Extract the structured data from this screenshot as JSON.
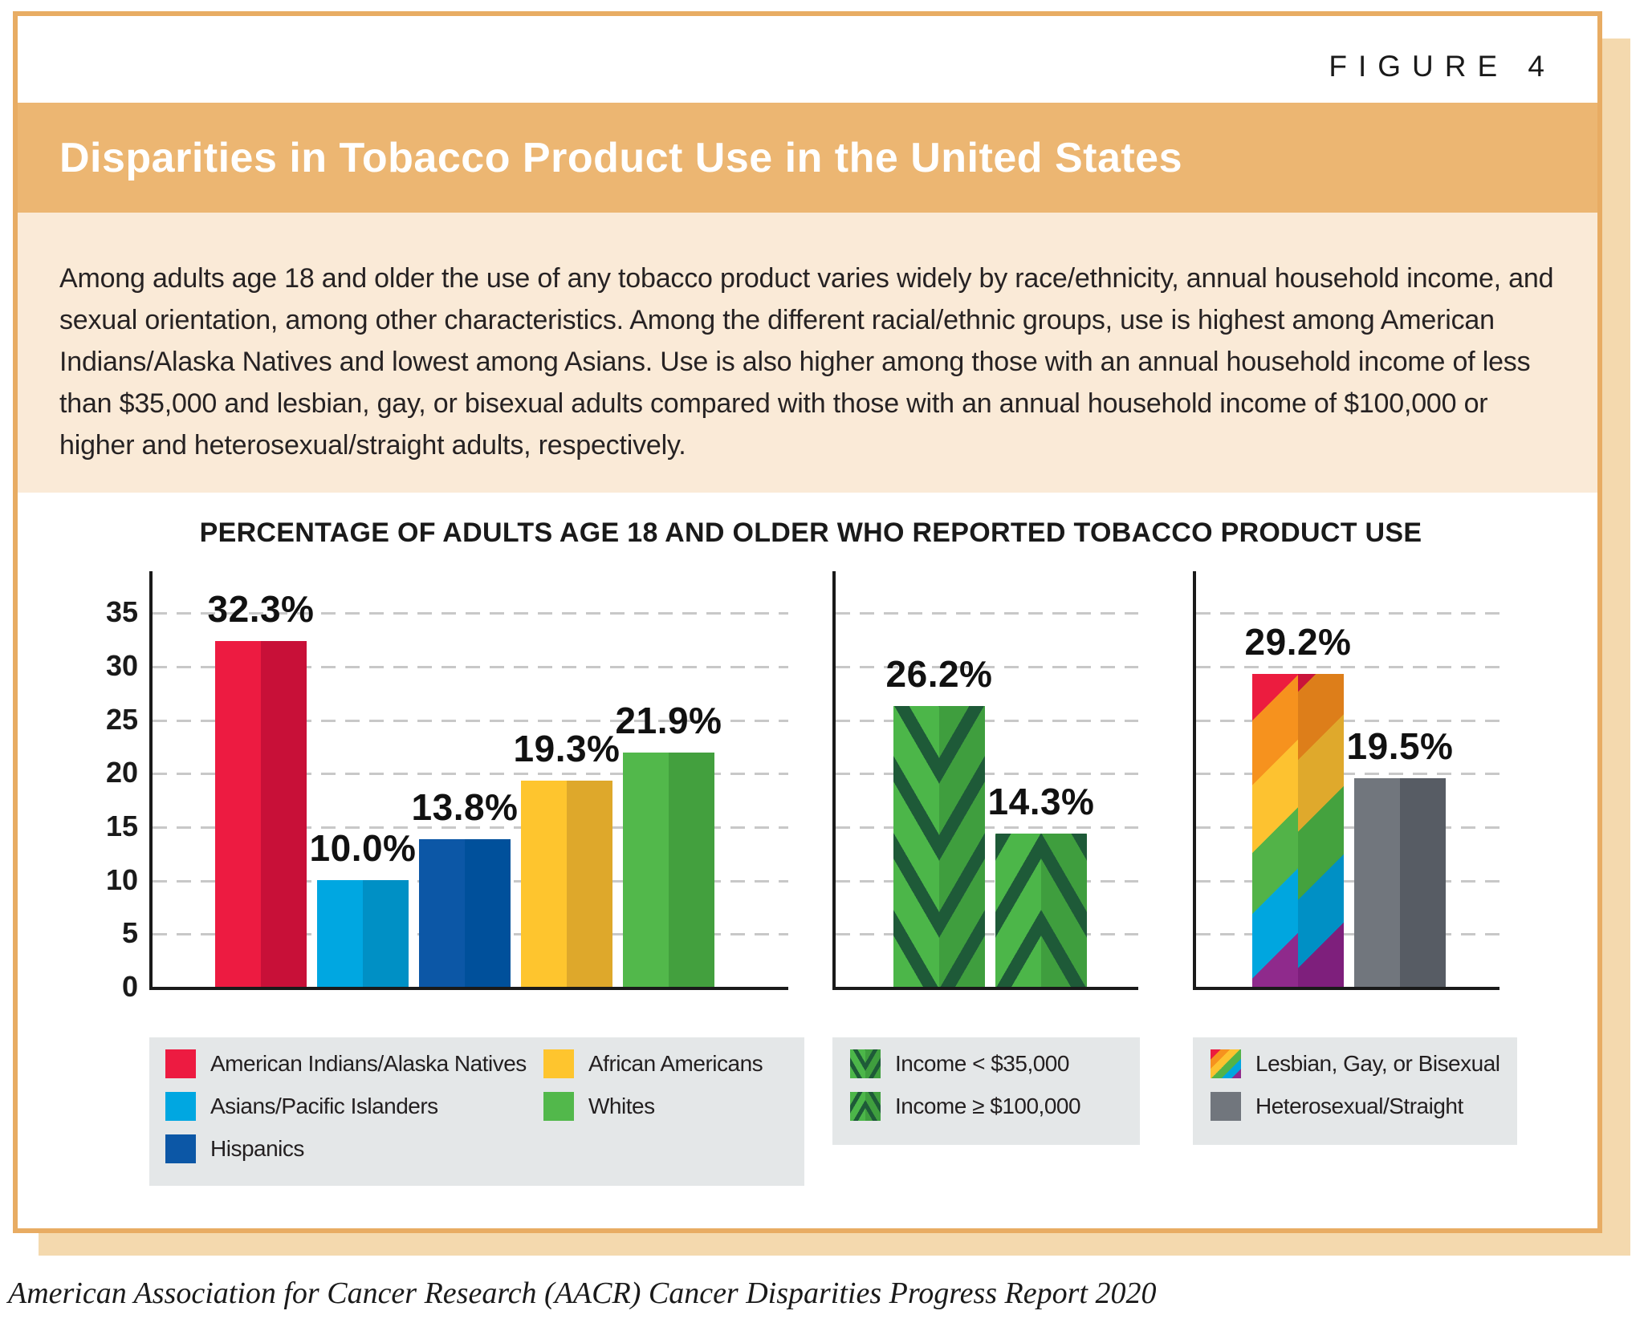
{
  "figure_label": "FIGURE 4",
  "title": "Disparities in Tobacco Product Use in the United States",
  "description": "Among adults age 18 and older the use of any tobacco product varies widely by race/ethnicity, annual household income, and sexual orientation, among other characteristics. Among the different racial/ethnic groups, use is highest among American Indians/Alaska Natives and lowest among Asians. Use is also higher among those with an annual household income of less than $35,000 and lesbian, gay, or bisexual adults compared with those with an annual household income of $100,000 or higher and heterosexual/straight adults, respectively.",
  "footer": "American Association for Cancer Research (AACR) Cancer Disparities Progress Report 2020",
  "colors": {
    "frame_border": "#E8AC63",
    "title_band": "#ECB672",
    "description_band": "#FAEAD7",
    "drop_shadow": "#F4D9AE",
    "legend_background": "#E4E7E8",
    "chevron_stripe": "#1E5A38",
    "text_black": "#231F20"
  },
  "chart_data": {
    "type": "bar",
    "title": "PERCENTAGE OF ADULTS AGE 18 AND OLDER WHO REPORTED TOBACCO PRODUCT USE",
    "ylabel": "",
    "xlabel": "",
    "ylim": [
      0,
      35
    ],
    "yticks": [
      0,
      5,
      10,
      15,
      20,
      25,
      30,
      35
    ],
    "grid": "dashed horizontal gridlines at every 5 units",
    "legend_position": "below each panel",
    "panels": [
      {
        "name": "race-ethnicity",
        "bars": [
          {
            "label": "American Indians/Alaska Natives",
            "value": 32.3,
            "display": "32.3%",
            "color": "#ED1B41",
            "color_dark": "#C81038"
          },
          {
            "label": "Asians/Pacific Islanders",
            "value": 10.0,
            "display": "10.0%",
            "color": "#00A7E1",
            "color_dark": "#0090C5"
          },
          {
            "label": "Hispanics",
            "value": 13.8,
            "display": "13.8%",
            "color": "#0C57A6",
            "color_dark": "#00509B"
          },
          {
            "label": "African Americans",
            "value": 19.3,
            "display": "19.3%",
            "color": "#FEC52E",
            "color_dark": "#DEA82B"
          },
          {
            "label": "Whites",
            "value": 21.9,
            "display": "21.9%",
            "color": "#52B84B",
            "color_dark": "#43A03E"
          }
        ]
      },
      {
        "name": "household-income",
        "bars": [
          {
            "label": "Income < $35,000",
            "value": 26.2,
            "display": "26.2%",
            "pattern": "chevron-down"
          },
          {
            "label": "Income ≥ $100,000",
            "value": 14.3,
            "display": "14.3%",
            "pattern": "chevron-up"
          }
        ]
      },
      {
        "name": "sexual-orientation",
        "bars": [
          {
            "label": "Lesbian, Gay, or Bisexual",
            "value": 29.2,
            "display": "29.2%",
            "pattern": "rainbow"
          },
          {
            "label": "Heterosexual/Straight",
            "value": 19.5,
            "display": "19.5%",
            "color": "#71767D",
            "color_dark": "#575C64"
          }
        ]
      }
    ],
    "legends": [
      {
        "items": [
          {
            "label": "American Indians/Alaska Natives",
            "color": "#ED1B41"
          },
          {
            "label": "Asians/Pacific Islanders",
            "color": "#00A7E1"
          },
          {
            "label": "Hispanics",
            "color": "#0C57A6"
          },
          {
            "label": "African Americans",
            "color": "#FEC52E"
          },
          {
            "label": "Whites",
            "color": "#52B84B"
          }
        ]
      },
      {
        "items": [
          {
            "label": "Income < $35,000",
            "pattern": "chevron-down"
          },
          {
            "label": "Income ≥ $100,000",
            "pattern": "chevron-up"
          }
        ]
      },
      {
        "items": [
          {
            "label": "Lesbian, Gay, or Bisexual",
            "pattern": "rainbow"
          },
          {
            "label": "Heterosexual/Straight",
            "color": "#71767D"
          }
        ]
      }
    ]
  }
}
